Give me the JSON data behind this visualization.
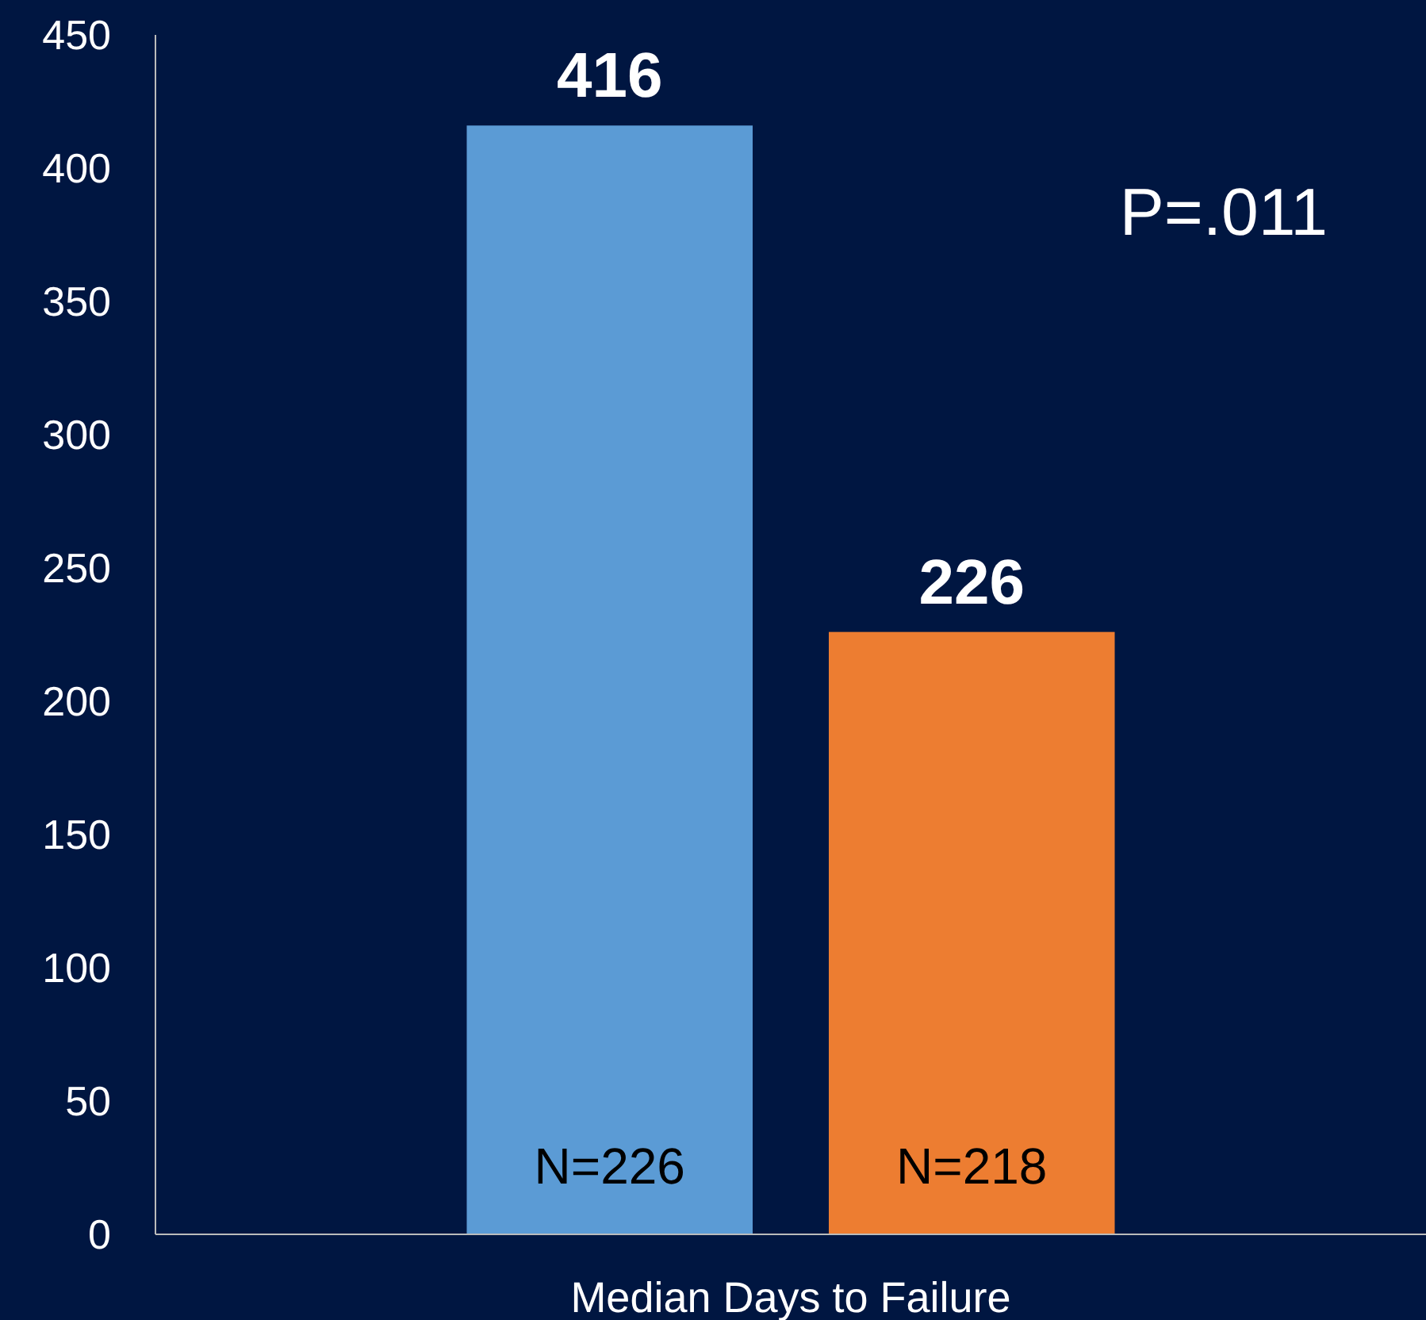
{
  "chart_data": {
    "type": "bar",
    "xlabel": "Median Days to Failure",
    "categories": [
      null
    ],
    "series": [
      {
        "color": "#5b9bd5",
        "values": [
          416
        ]
      },
      {
        "color": "#ed7d31",
        "values": [
          226
        ]
      }
    ],
    "ylim": [
      0,
      450
    ],
    "yticks": [
      0,
      50,
      100,
      150,
      200,
      250,
      300,
      350,
      400,
      450
    ],
    "grid": false,
    "data_labels": true,
    "annotations": [
      "N=226",
      "N=218",
      "P=.011"
    ]
  }
}
